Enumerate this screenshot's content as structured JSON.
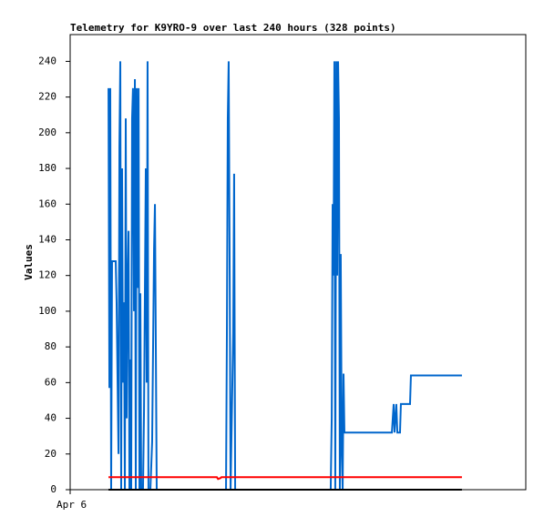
{
  "chart_data": {
    "type": "line",
    "title": "Telemetry for K9YRO-9 over last 240 hours (328 points)",
    "y_label": "Values",
    "xlim": [
      0,
      309
    ],
    "xticks": [
      {
        "value": 0,
        "label": "Apr 6"
      }
    ],
    "ylim": [
      0,
      255
    ],
    "yticks": [
      0,
      20,
      40,
      60,
      80,
      100,
      120,
      140,
      160,
      180,
      200,
      220,
      240
    ],
    "grid": false,
    "series": [
      {
        "color": "#0066cc",
        "x": [
          26.0,
          26.6,
          27.2,
          27.8,
          28.4,
          30.9,
          31.5,
          32.1,
          32.8,
          33.4,
          34.0,
          34.6,
          35.2,
          35.8,
          36.5,
          37.1,
          37.7,
          38.3,
          38.9,
          39.6,
          40.2,
          40.8,
          41.4,
          42.0,
          42.6,
          43.3,
          43.9,
          44.5,
          45.1,
          45.7,
          46.4,
          47.0,
          47.6,
          48.2,
          49.4,
          50.1,
          51.3,
          51.9,
          52.5,
          53.1,
          54.4,
          55.6,
          56.9,
          57.5,
          58.1,
          58.7,
          105.7,
          106.3,
          106.9,
          107.5,
          108.2,
          108.8,
          110.6,
          111.2,
          111.9,
          176.7,
          177.4,
          178.0,
          178.6,
          179.2,
          179.8,
          180.5,
          181.1,
          181.7,
          182.3,
          182.9,
          183.5,
          184.2,
          184.8,
          185.4,
          186.0,
          218.2,
          218.8,
          219.4,
          220.0,
          221.2,
          221.9,
          223.7,
          224.3,
          230.5,
          231.1,
          265.7
        ],
        "values": [
          225,
          57,
          225,
          0,
          128,
          128,
          105,
          65,
          20,
          192,
          240,
          0,
          180,
          60,
          105,
          0,
          208,
          40,
          110,
          145,
          0,
          73,
          0,
          208,
          225,
          100,
          230,
          0,
          225,
          113,
          225,
          0,
          110,
          0,
          0,
          45,
          180,
          60,
          240,
          0,
          0,
          27,
          135,
          160,
          80,
          0,
          0,
          88,
          208,
          240,
          120,
          0,
          88,
          177,
          0,
          0,
          40,
          160,
          120,
          240,
          0,
          240,
          120,
          240,
          208,
          0,
          132,
          20,
          0,
          65,
          32,
          32,
          40,
          48,
          32,
          48,
          32,
          32,
          48,
          48,
          64,
          64
        ]
      },
      {
        "color": "#ff0000",
        "x": [
          26.0,
          99.5,
          100.3,
          102.0,
          102.6,
          265.7
        ],
        "values": [
          7,
          7,
          6,
          6.5,
          7,
          7
        ]
      },
      {
        "color": "#000000",
        "x": [
          26.0,
          265.7
        ],
        "values": [
          0,
          0
        ]
      }
    ]
  }
}
